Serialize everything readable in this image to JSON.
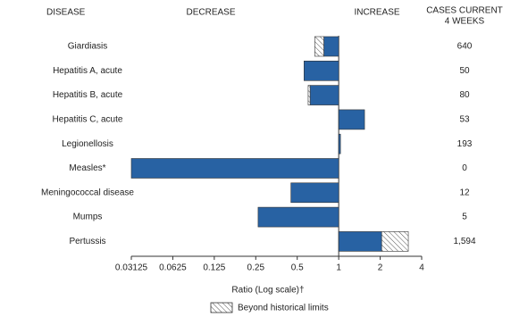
{
  "chart_data": {
    "type": "bar",
    "headers": {
      "disease": "DISEASE",
      "decrease": "DECREASE",
      "increase": "INCREASE",
      "cases": [
        "CASES CURRENT",
        "4 WEEKS"
      ]
    },
    "categories": [
      "Giardiasis",
      "Hepatitis A, acute",
      "Hepatitis B, acute",
      "Hepatitis C, acute",
      "Legionellosis",
      "Measles*",
      "Meningococcal disease",
      "Mumps",
      "Pertussis"
    ],
    "values": [
      0.67,
      0.56,
      0.6,
      1.54,
      1.03,
      0.03125,
      0.45,
      0.26,
      3.2
    ],
    "historical_limits": [
      0.78,
      null,
      0.62,
      null,
      null,
      null,
      null,
      null,
      2.05
    ],
    "cases": [
      "640",
      "50",
      "80",
      "53",
      "193",
      "0",
      "12",
      "5",
      "1,594"
    ],
    "color": "#2862a3",
    "log_scale": true,
    "xlim": [
      0.03125,
      4
    ],
    "xticks": [
      0.03125,
      0.0625,
      0.125,
      0.25,
      0.5,
      1,
      2,
      4
    ],
    "xlabel": "Ratio (Log scale)†",
    "legend": "Beyond historical limits"
  }
}
